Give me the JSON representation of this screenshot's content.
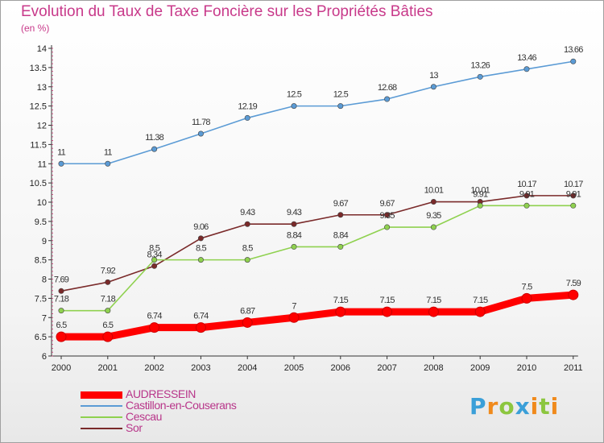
{
  "chart_data": {
    "type": "line",
    "title": "Evolution du Taux de Taxe Foncière sur les Propriétés Bâties",
    "subtitle": "(en %)",
    "x": [
      "2000",
      "2001",
      "2002",
      "2003",
      "2004",
      "2005",
      "2006",
      "2007",
      "2008",
      "2009",
      "2010",
      "2011"
    ],
    "ylim": [
      6,
      14
    ],
    "yticks": [
      "6",
      "6.5",
      "7",
      "7.5",
      "8",
      "8.5",
      "9",
      "9.5",
      "10",
      "10.5",
      "11",
      "11.5",
      "12",
      "12.5",
      "13",
      "13.5",
      "14"
    ],
    "grid": false,
    "legend_position": "bottom-left",
    "series": [
      {
        "name": "AUDRESSEIN",
        "color": "#ff0000",
        "values": [
          6.5,
          6.5,
          6.74,
          6.74,
          6.87,
          7,
          7.15,
          7.15,
          7.15,
          7.15,
          7.5,
          7.59
        ],
        "labels": [
          "6.5",
          "6.5",
          "6.74",
          "6.74",
          "6.87",
          "7",
          "7.15",
          "7.15",
          "7.15",
          "7.15",
          "7.5",
          "7.59"
        ]
      },
      {
        "name": "Castillon-en-Couserans",
        "color": "#5b9bd5",
        "values": [
          11,
          11,
          11.38,
          11.78,
          12.19,
          12.5,
          12.5,
          12.68,
          13,
          13.26,
          13.46,
          13.66
        ],
        "labels": [
          "11",
          "11",
          "11.38",
          "11.78",
          "12.19",
          "12.5",
          "12.5",
          "12.68",
          "13",
          "13.26",
          "13.46",
          "13.66"
        ]
      },
      {
        "name": "Cescau",
        "color": "#8fd14f",
        "values": [
          7.18,
          7.18,
          8.5,
          8.5,
          8.5,
          8.84,
          8.84,
          9.35,
          9.35,
          9.91,
          9.91,
          9.91
        ],
        "labels": [
          "7.18",
          "7.18",
          "8.5",
          "8.5",
          "8.5",
          "8.84",
          "8.84",
          "9.35",
          "9.35",
          "9.91",
          "9.91",
          "9.91"
        ]
      },
      {
        "name": "Sor",
        "color": "#7a2a2a",
        "values": [
          7.69,
          7.92,
          8.34,
          9.06,
          9.43,
          9.43,
          9.67,
          9.67,
          10.01,
          10.01,
          10.17,
          10.17
        ],
        "labels": [
          "7.69",
          "7.92",
          "8.34",
          "9.06",
          "9.43",
          "9.43",
          "9.67",
          "9.67",
          "10.01",
          "10.01",
          "10.17",
          "10.17"
        ]
      }
    ]
  },
  "logo": {
    "letters": [
      "P",
      "r",
      "o",
      "x",
      "i",
      "t",
      "i"
    ],
    "colors": [
      "#3a9fd8",
      "#f08a1c",
      "#8cc63f",
      "#3a9fd8",
      "#f08a1c",
      "#8cc63f",
      "#f08a1c"
    ]
  }
}
